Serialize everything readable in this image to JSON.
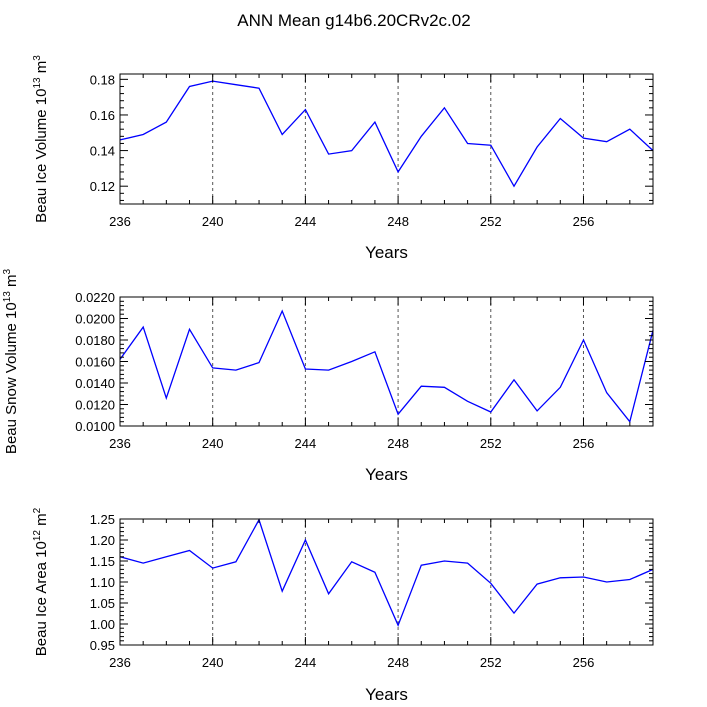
{
  "figure_title": "ANN Mean g14b6.20CRv2c.02",
  "chart_data": [
    {
      "type": "line",
      "title": "",
      "xlabel": "Years",
      "ylabel": "Beau Ice Volume 10",
      "ylabel_exp": "13",
      "ylabel_unit": " m",
      "ylabel_unit_exp": "3",
      "xlim": [
        236,
        259
      ],
      "ylim": [
        0.11,
        0.183
      ],
      "xticks": [
        236,
        240,
        244,
        248,
        252,
        256
      ],
      "xtick_labels": [
        "236",
        "240",
        "244",
        "248",
        "252",
        "256"
      ],
      "yticks": [
        0.12,
        0.14,
        0.16,
        0.18
      ],
      "ytick_labels": [
        "0.12",
        "0.14",
        "0.16",
        "0.18"
      ],
      "grid_x": [
        240,
        244,
        248,
        252,
        256
      ],
      "x": [
        236,
        237,
        238,
        239,
        240,
        241,
        242,
        243,
        244,
        245,
        246,
        247,
        248,
        249,
        250,
        251,
        252,
        253,
        254,
        255,
        256,
        257,
        258,
        259
      ],
      "series": [
        {
          "name": "Beau Ice Volume",
          "color": "#0000ff",
          "values": [
            0.146,
            0.149,
            0.156,
            0.176,
            0.179,
            0.177,
            0.175,
            0.149,
            0.163,
            0.138,
            0.14,
            0.156,
            0.128,
            0.148,
            0.164,
            0.144,
            0.143,
            0.12,
            0.142,
            0.158,
            0.147,
            0.145,
            0.152,
            0.14
          ]
        }
      ]
    },
    {
      "type": "line",
      "title": "",
      "xlabel": "Years",
      "ylabel": "Beau Snow Volume 10",
      "ylabel_exp": "13",
      "ylabel_unit": " m",
      "ylabel_unit_exp": "3",
      "xlim": [
        236,
        259
      ],
      "ylim": [
        0.01,
        0.022
      ],
      "xticks": [
        236,
        240,
        244,
        248,
        252,
        256
      ],
      "xtick_labels": [
        "236",
        "240",
        "244",
        "248",
        "252",
        "256"
      ],
      "yticks": [
        0.01,
        0.012,
        0.014,
        0.016,
        0.018,
        0.02,
        0.022
      ],
      "ytick_labels": [
        "0.0100",
        "0.0120",
        "0.0140",
        "0.0160",
        "0.0180",
        "0.0200",
        "0.0220"
      ],
      "grid_x": [
        240,
        244,
        248,
        252,
        256
      ],
      "x": [
        236,
        237,
        238,
        239,
        240,
        241,
        242,
        243,
        244,
        245,
        246,
        247,
        248,
        249,
        250,
        251,
        252,
        253,
        254,
        255,
        256,
        257,
        258,
        259
      ],
      "series": [
        {
          "name": "Beau Snow Volume",
          "color": "#0000ff",
          "values": [
            0.0162,
            0.0192,
            0.0126,
            0.019,
            0.0154,
            0.0152,
            0.0159,
            0.0207,
            0.0153,
            0.0152,
            0.016,
            0.0169,
            0.0111,
            0.0137,
            0.0136,
            0.0123,
            0.0113,
            0.0143,
            0.0114,
            0.0136,
            0.018,
            0.0131,
            0.0104,
            0.0189
          ]
        }
      ]
    },
    {
      "type": "line",
      "title": "",
      "xlabel": "Years",
      "ylabel": "Beau Ice Area 10",
      "ylabel_exp": "12",
      "ylabel_unit": " m",
      "ylabel_unit_exp": "2",
      "xlim": [
        236,
        259
      ],
      "ylim": [
        0.95,
        1.25
      ],
      "xticks": [
        236,
        240,
        244,
        248,
        252,
        256
      ],
      "xtick_labels": [
        "236",
        "240",
        "244",
        "248",
        "252",
        "256"
      ],
      "yticks": [
        0.95,
        1.0,
        1.05,
        1.1,
        1.15,
        1.2,
        1.25
      ],
      "ytick_labels": [
        "0.95",
        "1.00",
        "1.05",
        "1.10",
        "1.15",
        "1.20",
        "1.25"
      ],
      "grid_x": [
        240,
        244,
        248,
        252,
        256
      ],
      "x": [
        236,
        237,
        238,
        239,
        240,
        241,
        242,
        243,
        244,
        245,
        246,
        247,
        248,
        249,
        250,
        251,
        252,
        253,
        254,
        255,
        256,
        257,
        258,
        259
      ],
      "series": [
        {
          "name": "Beau Ice Area",
          "color": "#0000ff",
          "values": [
            1.16,
            1.145,
            1.16,
            1.175,
            1.133,
            1.148,
            1.248,
            1.078,
            1.2,
            1.072,
            1.148,
            1.123,
            0.997,
            1.14,
            1.15,
            1.145,
            1.097,
            1.026,
            1.095,
            1.11,
            1.112,
            1.1,
            1.106,
            1.13
          ]
        }
      ]
    }
  ]
}
